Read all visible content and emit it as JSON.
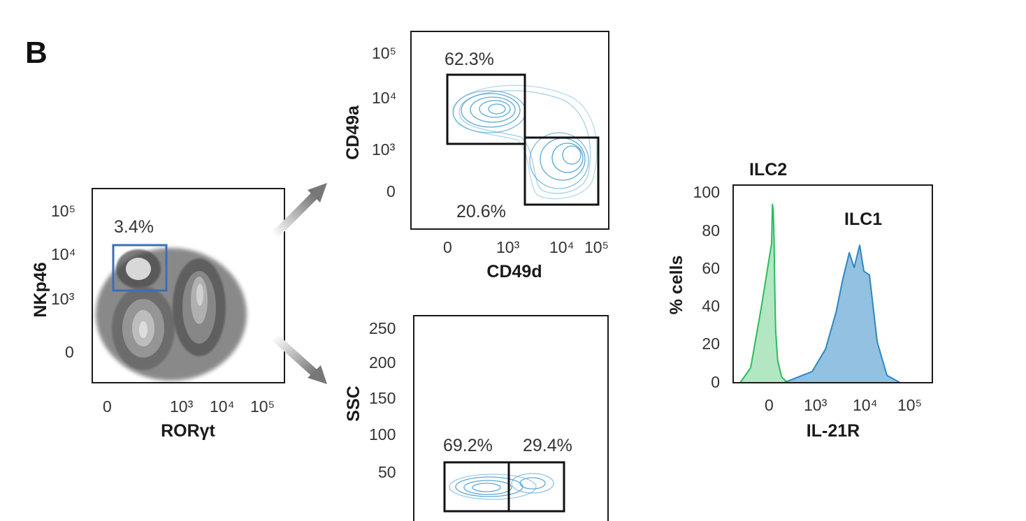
{
  "figure": {
    "panel_label": "B"
  },
  "colors": {
    "gate_blue": "#3a6fb8",
    "contour_blue": "#5aa8d8",
    "ilc1_fill": "#7fb6dc",
    "ilc1_stroke": "#2f86c0",
    "ilc1_label": "#4a86c8",
    "ilc2_fill": "#a6e2b8",
    "ilc2_stroke": "#2dbb5c",
    "ilc2_label": "#3cc46c",
    "arrow": "#888888"
  },
  "chart_data": [
    {
      "type": "scatter",
      "subtype": "flow-cytometry-density",
      "xlabel": "RORγt",
      "ylabel": "NKp46",
      "x_ticks": [
        "0",
        "10³",
        "10⁴",
        "10⁵"
      ],
      "y_ticks": [
        "0",
        "10³",
        "10⁴",
        "10⁵"
      ],
      "gates": [
        {
          "label": "3.4%",
          "percent": 3.4,
          "x_range": [
            "-50",
            "400"
          ],
          "y_range": [
            "2000",
            "13000"
          ]
        }
      ]
    },
    {
      "type": "scatter",
      "subtype": "flow-cytometry-contour",
      "xlabel": "CD49d",
      "ylabel": "CD49a",
      "x_ticks": [
        "0",
        "10³",
        "10⁴",
        "10⁵"
      ],
      "y_ticks": [
        "0",
        "10³",
        "10⁴",
        "10⁵"
      ],
      "gates": [
        {
          "label": "62.3%",
          "percent": 62.3,
          "population": "upper-left"
        },
        {
          "label": "20.6%",
          "percent": 20.6,
          "population": "lower-right"
        }
      ]
    },
    {
      "type": "scatter",
      "subtype": "flow-cytometry-contour",
      "xlabel": "",
      "ylabel": "SSC",
      "y_ticks": [
        "50",
        "100",
        "150",
        "200",
        "250"
      ],
      "gates": [
        {
          "label": "69.2%",
          "percent": 69.2,
          "population": "left"
        },
        {
          "label": "29.4%",
          "percent": 29.4,
          "population": "right"
        }
      ]
    },
    {
      "type": "area",
      "subtype": "histogram",
      "xlabel": "IL-21R",
      "ylabel": "% cells",
      "x_ticks": [
        "0",
        "10³",
        "10⁴",
        "10⁵"
      ],
      "y_ticks": [
        "0",
        "20",
        "40",
        "60",
        "80",
        "100"
      ],
      "ylim": [
        0,
        100
      ],
      "series": [
        {
          "name": "ILC2",
          "x": [
            -60,
            -40,
            -20,
            0,
            20,
            40,
            60,
            80,
            100,
            150,
            250,
            400
          ],
          "y": [
            0,
            8,
            40,
            75,
            96,
            93,
            78,
            50,
            28,
            12,
            3,
            0
          ]
        },
        {
          "name": "ILC1",
          "x": [
            300,
            1000,
            2000,
            3500,
            5000,
            7000,
            9000,
            12000,
            15000,
            20000,
            30000,
            50000,
            100000
          ],
          "y": [
            0,
            6,
            18,
            38,
            56,
            70,
            62,
            74,
            60,
            58,
            22,
            4,
            0
          ]
        }
      ]
    }
  ]
}
